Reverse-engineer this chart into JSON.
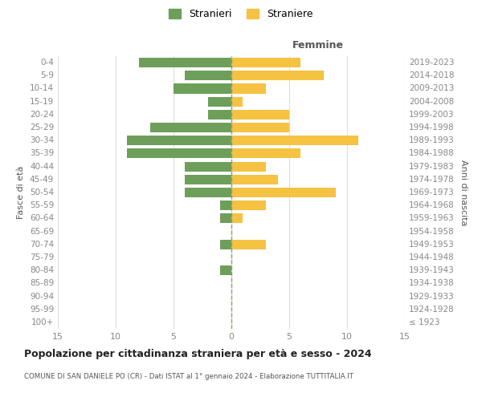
{
  "age_groups": [
    "100+",
    "95-99",
    "90-94",
    "85-89",
    "80-84",
    "75-79",
    "70-74",
    "65-69",
    "60-64",
    "55-59",
    "50-54",
    "45-49",
    "40-44",
    "35-39",
    "30-34",
    "25-29",
    "20-24",
    "15-19",
    "10-14",
    "5-9",
    "0-4"
  ],
  "birth_years": [
    "≤ 1923",
    "1924-1928",
    "1929-1933",
    "1934-1938",
    "1939-1943",
    "1944-1948",
    "1949-1953",
    "1954-1958",
    "1959-1963",
    "1964-1968",
    "1969-1973",
    "1974-1978",
    "1979-1983",
    "1984-1988",
    "1989-1993",
    "1994-1998",
    "1999-2003",
    "2004-2008",
    "2009-2013",
    "2014-2018",
    "2019-2023"
  ],
  "males": [
    0,
    0,
    0,
    0,
    1,
    0,
    1,
    0,
    1,
    1,
    4,
    4,
    4,
    9,
    9,
    7,
    2,
    2,
    5,
    4,
    8
  ],
  "females": [
    0,
    0,
    0,
    0,
    0,
    0,
    3,
    0,
    1,
    3,
    9,
    4,
    3,
    6,
    11,
    5,
    5,
    1,
    3,
    8,
    6
  ],
  "male_color": "#6d9f5a",
  "female_color": "#f5c242",
  "title": "Popolazione per cittadinanza straniera per età e sesso - 2024",
  "subtitle": "COMUNE DI SAN DANIELE PO (CR) - Dati ISTAT al 1° gennaio 2024 - Elaborazione TUTTITALIA.IT",
  "xlabel_right": "Femmine",
  "ylabel_left": "Fasce di età",
  "ylabel_right": "Anni di nascita",
  "legend_stranieri": "Stranieri",
  "legend_straniere": "Straniere",
  "xlim": 15,
  "background_color": "#ffffff",
  "grid_color": "#dddddd",
  "bar_height": 0.75,
  "tick_color": "#888888",
  "dashed_line_color": "#999977"
}
